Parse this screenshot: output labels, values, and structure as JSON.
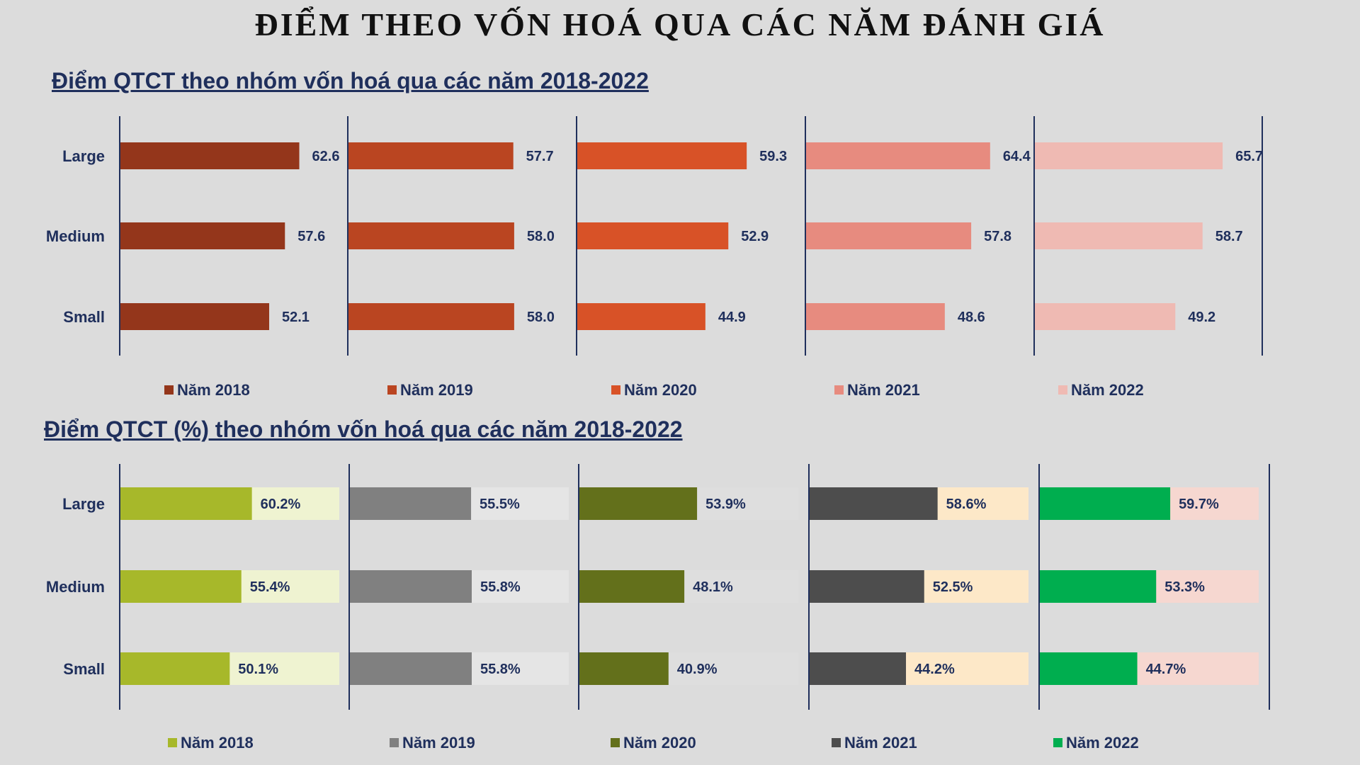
{
  "page_title": "ĐIỂM THEO VỐN HOÁ QUA CÁC NĂM ĐÁNH GIÁ",
  "chart_data": [
    {
      "type": "bar",
      "orientation": "horizontal",
      "layout": "small-multiples",
      "title": "Điểm QTCT theo nhóm vốn hoá qua các năm 2018-2022",
      "categories": [
        "Large",
        "Medium",
        "Small"
      ],
      "series": [
        {
          "name": "Năm 2018",
          "values": [
            62.6,
            57.6,
            52.1
          ],
          "labels": [
            "62.6",
            "57.6",
            "52.1"
          ],
          "color": "#94361b"
        },
        {
          "name": "Năm 2019",
          "values": [
            57.7,
            58.0,
            58.0
          ],
          "labels": [
            "57.7",
            "58.0",
            "58.0"
          ],
          "color": "#ba4521"
        },
        {
          "name": "Năm 2020",
          "values": [
            59.3,
            52.9,
            44.9
          ],
          "labels": [
            "59.3",
            "52.9",
            "44.9"
          ],
          "color": "#d85227"
        },
        {
          "name": "Năm 2021",
          "values": [
            64.4,
            57.8,
            48.6
          ],
          "labels": [
            "64.4",
            "57.8",
            "48.6"
          ],
          "color": "#e78b7f"
        },
        {
          "name": "Năm 2022",
          "values": [
            65.7,
            58.7,
            49.2
          ],
          "labels": [
            "65.7",
            "58.7",
            "49.2"
          ],
          "color": "#efbab3"
        }
      ],
      "xlim": [
        0,
        80
      ],
      "legend": "bottom"
    },
    {
      "type": "bar",
      "orientation": "horizontal",
      "layout": "small-multiples",
      "title": "Điểm QTCT (%) theo nhóm vốn hoá qua các năm 2018-2022",
      "categories": [
        "Large",
        "Medium",
        "Small"
      ],
      "series": [
        {
          "name": "Năm 2018",
          "values": [
            60.2,
            55.4,
            50.1
          ],
          "labels": [
            "60.2%",
            "55.4%",
            "50.1%"
          ],
          "color": "#a7b82a",
          "track_color": "#eff3d1"
        },
        {
          "name": "Năm 2019",
          "values": [
            55.5,
            55.8,
            55.8
          ],
          "labels": [
            "55.5%",
            "55.8%",
            "55.8%"
          ],
          "color": "#808080",
          "track_color": "#e5e5e5"
        },
        {
          "name": "Năm 2020",
          "values": [
            53.9,
            48.1,
            40.9
          ],
          "labels": [
            "53.9%",
            "48.1%",
            "40.9%"
          ],
          "color": "#63701b",
          "track_color": "#dedede"
        },
        {
          "name": "Năm 2021",
          "values": [
            58.6,
            52.5,
            44.2
          ],
          "labels": [
            "58.6%",
            "52.5%",
            "44.2%"
          ],
          "color": "#4d4d4d",
          "track_color": "#fde8c8"
        },
        {
          "name": "Năm 2022",
          "values": [
            59.7,
            53.3,
            44.7
          ],
          "labels": [
            "59.7%",
            "53.3%",
            "44.7%"
          ],
          "color": "#00ae4f",
          "track_color": "#f6d7d0"
        }
      ],
      "xlim": [
        0,
        100
      ],
      "legend": "bottom"
    }
  ],
  "colors": {
    "title_text": "#1f2f5c",
    "axis_line": "#1f2f5c",
    "background": "#dcdcdc"
  }
}
